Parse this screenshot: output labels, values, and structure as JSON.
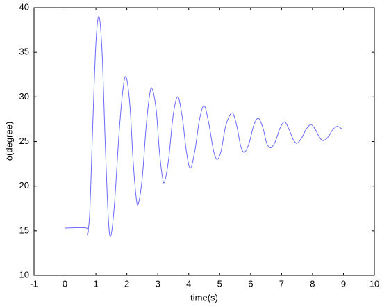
{
  "chart_data": {
    "type": "line",
    "xlabel": "time(s)",
    "ylabel": "δ(degree)",
    "xlim": [
      -1,
      10
    ],
    "ylim": [
      10,
      40
    ],
    "xticks": [
      -1,
      0,
      1,
      2,
      3,
      4,
      5,
      6,
      7,
      8,
      9,
      10
    ],
    "yticks": [
      10,
      15,
      20,
      25,
      30,
      35,
      40
    ],
    "grid": false,
    "series": [
      {
        "color": "#6a6aff",
        "x": [
          0,
          0.7,
          0.72,
          0.8,
          0.9,
          1.0,
          1.1,
          1.2,
          1.3,
          1.4,
          1.48,
          1.6,
          1.75,
          1.88,
          1.98,
          2.1,
          2.2,
          2.3,
          2.37,
          2.5,
          2.62,
          2.74,
          2.82,
          2.95,
          3.05,
          3.15,
          3.22,
          3.35,
          3.5,
          3.65,
          3.8,
          3.92,
          4.05,
          4.2,
          4.35,
          4.5,
          4.65,
          4.8,
          4.92,
          5.05,
          5.2,
          5.4,
          5.55,
          5.68,
          5.8,
          5.95,
          6.1,
          6.25,
          6.4,
          6.52,
          6.65,
          6.8,
          6.95,
          7.1,
          7.25,
          7.38,
          7.5,
          7.65,
          7.8,
          7.95,
          8.1,
          8.22,
          8.35,
          8.5,
          8.65,
          8.8,
          8.95
        ],
        "values": [
          15.3,
          15.3,
          14.6,
          17,
          27,
          36,
          39,
          35,
          25,
          16.5,
          14.4,
          18,
          26,
          31,
          32.2,
          29,
          23,
          18.8,
          18,
          21,
          26.5,
          30.3,
          30.9,
          28.5,
          24,
          21,
          20.5,
          23,
          28,
          30,
          27.5,
          24,
          22,
          24,
          27.5,
          29,
          27,
          24,
          23,
          24,
          26.8,
          28.2,
          26.8,
          24.5,
          23.8,
          24.8,
          26.8,
          27.6,
          26.5,
          24.8,
          24.3,
          25,
          26.5,
          27.2,
          26.3,
          25.2,
          24.8,
          25.4,
          26.4,
          26.9,
          26.3,
          25.5,
          25.1,
          25.5,
          26.3,
          26.7,
          26.4
        ]
      }
    ]
  }
}
